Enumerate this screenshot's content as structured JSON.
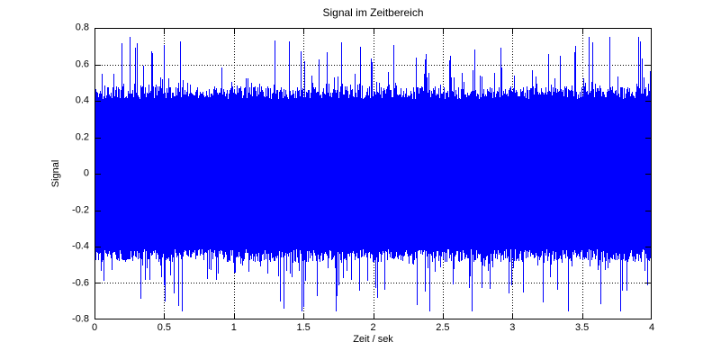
{
  "chart_data": {
    "type": "line",
    "title": "Signal im Zeitbereich",
    "xlabel": "Zeit / sek",
    "ylabel": "Signal",
    "xlim": [
      0,
      4
    ],
    "ylim": [
      -0.8,
      0.8
    ],
    "xtick_values": [
      0,
      0.5,
      1,
      1.5,
      2,
      2.5,
      3,
      3.5,
      4
    ],
    "xtick_labels": [
      "0",
      "0.5",
      "1",
      "1.5",
      "2",
      "2.5",
      "3",
      "3.5",
      "4"
    ],
    "ytick_values": [
      0.8,
      0.6,
      0.4,
      0.2,
      0,
      -0.2,
      -0.4,
      -0.6,
      -0.8
    ],
    "ytick_labels": [
      "0.8",
      "0.6",
      "0.4",
      "0.2",
      "0",
      "-0.2",
      "-0.4",
      "-0.6",
      "-0.8"
    ],
    "grid": "on",
    "grid_style": "dotted",
    "grid_color": "#000000",
    "axis_color": "#000000",
    "background": "#ffffff",
    "series": [
      {
        "name": "signal",
        "color": "#0000ff",
        "kind": "dense-broadband-noise",
        "description": "Zero-mean broadband noise over 0 to 4 s; solid band spanning about -0.45 to +0.45 with random 1-px spikes reaching up to about +/-0.75; stationary across the full time range",
        "core_amplitude": 0.45,
        "peak_amplitude": 0.75,
        "envelope": {
          "base": 0.41,
          "jitter": 0.07,
          "spike_prob": 0.25,
          "spike_min": 0.02,
          "spike_range": 0.3,
          "spike_exponent": 3,
          "cap": 0.75,
          "seed": 1234567
        }
      }
    ]
  }
}
